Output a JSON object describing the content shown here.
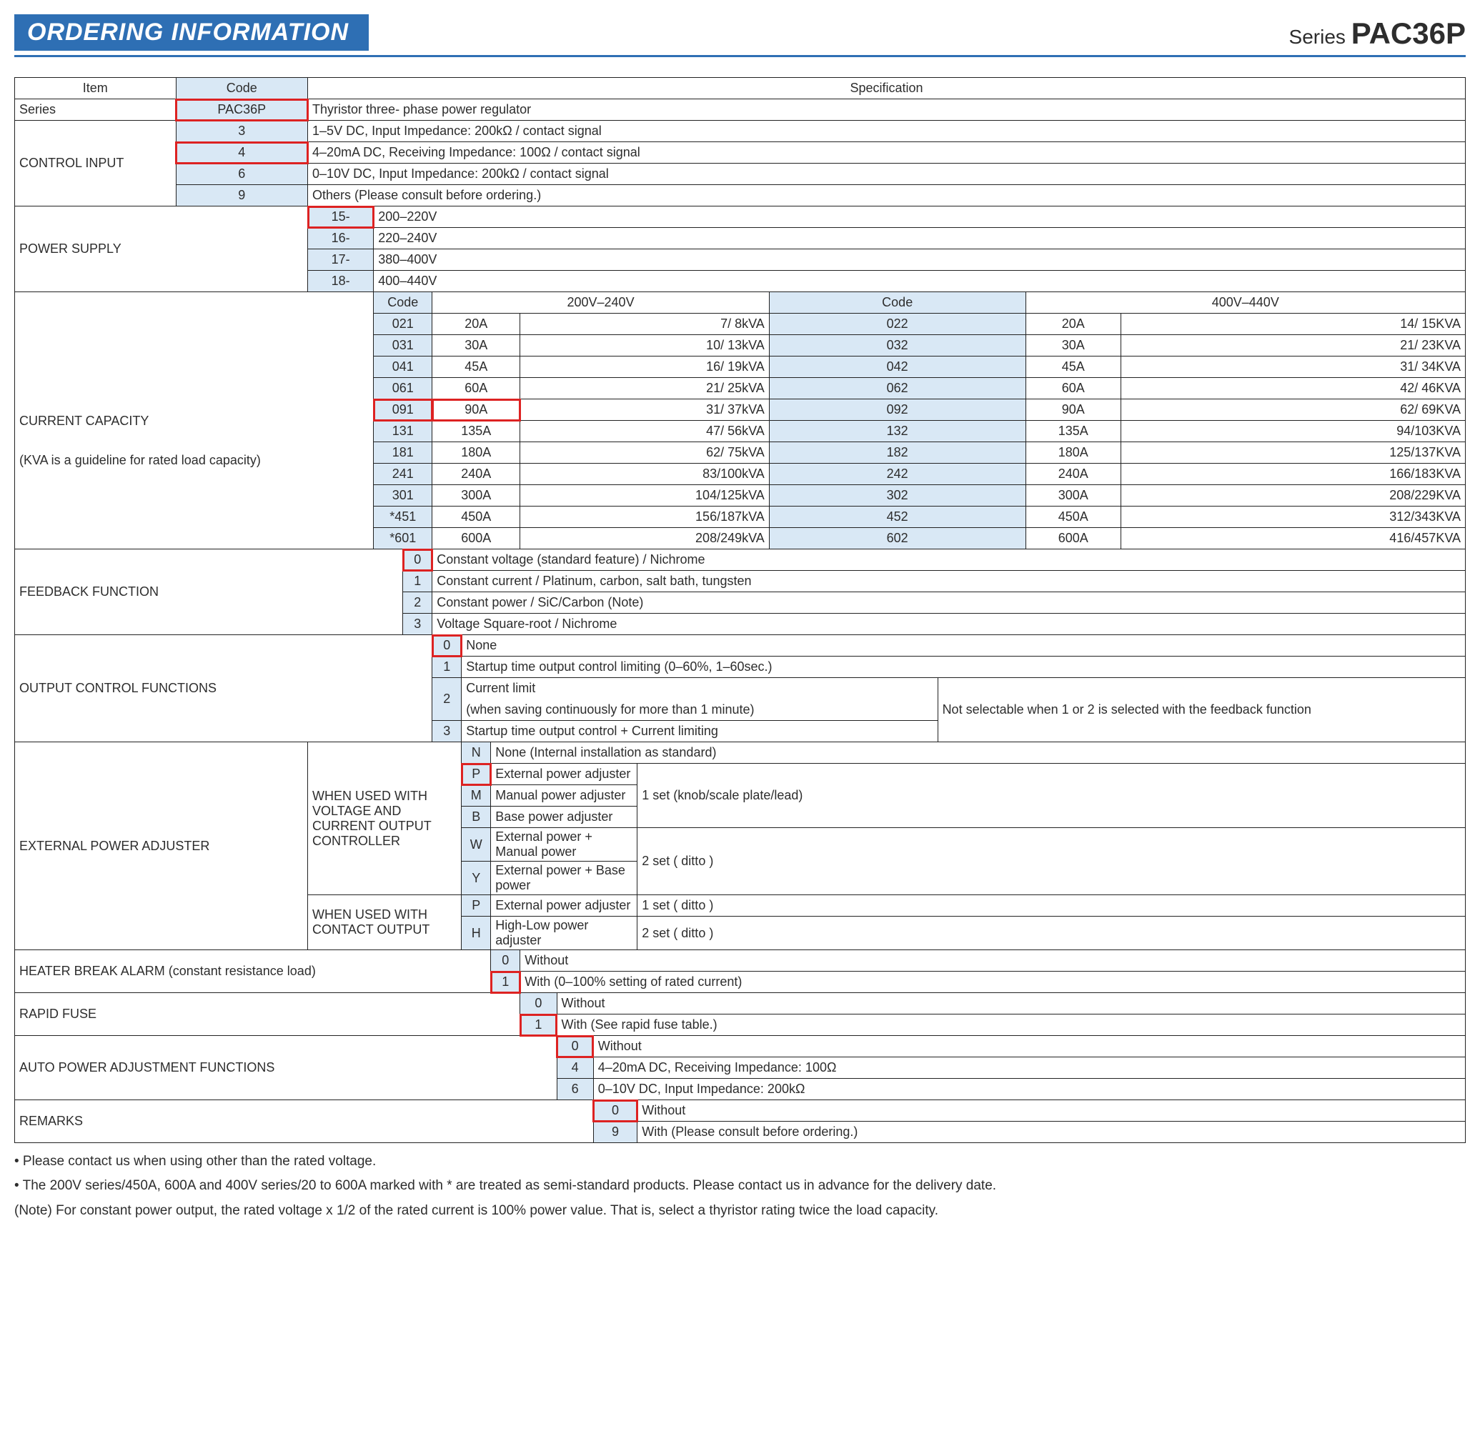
{
  "header": {
    "title": "ORDERING INFORMATION",
    "series_prefix": "Series",
    "series_model": "PAC36P"
  },
  "table_head": {
    "item": "Item",
    "code": "Code",
    "spec": "Specification"
  },
  "series_row": {
    "label": "Series",
    "code": "PAC36P",
    "spec": "Thyristor three- phase power regulator"
  },
  "control_input": {
    "label": "CONTROL INPUT",
    "rows": [
      {
        "code": "3",
        "spec": "1–5V DC, Input Impedance: 200kΩ / contact signal",
        "sel": false
      },
      {
        "code": "4",
        "spec": "4–20mA DC, Receiving Impedance: 100Ω / contact signal",
        "sel": true
      },
      {
        "code": "6",
        "spec": "0–10V DC, Input Impedance: 200kΩ / contact signal",
        "sel": false
      },
      {
        "code": "9",
        "spec": "Others (Please consult before ordering.)",
        "sel": false
      }
    ]
  },
  "power_supply": {
    "label": "POWER SUPPLY",
    "rows": [
      {
        "code": "15-",
        "spec": "200–220V",
        "sel": true
      },
      {
        "code": "16-",
        "spec": "220–240V",
        "sel": false
      },
      {
        "code": "17-",
        "spec": "380–400V",
        "sel": false
      },
      {
        "code": "18-",
        "spec": "400–440V",
        "sel": false
      }
    ]
  },
  "current_capacity": {
    "label": "CURRENT CAPACITY",
    "sublabel": "(KVA is a guideline for rated load capacity)",
    "header": {
      "code": "Code",
      "v200": "200V–240V",
      "code2": "Code",
      "v400": "400V–440V"
    },
    "rows": [
      {
        "c1": "021",
        "a1": "20A",
        "k1": "7/   8kVA",
        "c2": "022",
        "a2": "20A",
        "k2": "14/  15KVA",
        "sel": false
      },
      {
        "c1": "031",
        "a1": "30A",
        "k1": "10/  13kVA",
        "c2": "032",
        "a2": "30A",
        "k2": "21/  23KVA",
        "sel": false
      },
      {
        "c1": "041",
        "a1": "45A",
        "k1": "16/  19kVA",
        "c2": "042",
        "a2": "45A",
        "k2": "31/  34KVA",
        "sel": false
      },
      {
        "c1": "061",
        "a1": "60A",
        "k1": "21/  25kVA",
        "c2": "062",
        "a2": "60A",
        "k2": "42/  46KVA",
        "sel": false
      },
      {
        "c1": "091",
        "a1": "90A",
        "k1": "31/  37kVA",
        "c2": "092",
        "a2": "90A",
        "k2": "62/  69KVA",
        "sel": true
      },
      {
        "c1": "131",
        "a1": "135A",
        "k1": "47/  56kVA",
        "c2": "132",
        "a2": "135A",
        "k2": "94/103KVA",
        "sel": false
      },
      {
        "c1": "181",
        "a1": "180A",
        "k1": "62/  75kVA",
        "c2": "182",
        "a2": "180A",
        "k2": "125/137KVA",
        "sel": false
      },
      {
        "c1": "241",
        "a1": "240A",
        "k1": "83/100kVA",
        "c2": "242",
        "a2": "240A",
        "k2": "166/183KVA",
        "sel": false
      },
      {
        "c1": "301",
        "a1": "300A",
        "k1": "104/125kVA",
        "c2": "302",
        "a2": "300A",
        "k2": "208/229KVA",
        "sel": false
      },
      {
        "c1": "*451",
        "a1": "450A",
        "k1": "156/187kVA",
        "c2": "452",
        "a2": "450A",
        "k2": "312/343KVA",
        "sel": false
      },
      {
        "c1": "*601",
        "a1": "600A",
        "k1": "208/249kVA",
        "c2": "602",
        "a2": "600A",
        "k2": "416/457KVA",
        "sel": false
      }
    ]
  },
  "feedback": {
    "label": "FEEDBACK FUNCTION",
    "rows": [
      {
        "code": "0",
        "spec": "Constant voltage (standard feature) / Nichrome",
        "sel": true
      },
      {
        "code": "1",
        "spec": "Constant current / Platinum, carbon, salt bath, tungsten",
        "sel": false
      },
      {
        "code": "2",
        "spec": "Constant power / SiC/Carbon (Note)",
        "sel": false
      },
      {
        "code": "3",
        "spec": "Voltage Square-root / Nichrome",
        "sel": false
      }
    ]
  },
  "output_control": {
    "label": "OUTPUT CONTROL FUNCTIONS",
    "note": "Not selectable when 1 or 2 is selected with the feedback function",
    "rows": [
      {
        "code": "0",
        "spec": "None",
        "sel": true
      },
      {
        "code": "1",
        "spec": "Startup time output control limiting (0–60%, 1–60sec.)",
        "sel": false
      },
      {
        "code": "2",
        "spec_l1": "Current limit",
        "spec_l2": "(when saving continuously for more than 1 minute)",
        "sel": false
      },
      {
        "code": "3",
        "spec": "Startup time output control + Current limiting",
        "sel": false
      }
    ]
  },
  "external_power": {
    "label": "EXTERNAL POWER ADJUSTER",
    "group1_label_l1": "WHEN USED WITH",
    "group1_label_l2": "VOLTAGE AND",
    "group1_label_l3": "CURRENT OUTPUT",
    "group1_label_l4": "CONTROLLER",
    "group2_label_l1": "WHEN USED WITH",
    "group2_label_l2": "CONTACT  OUTPUT",
    "group1": [
      {
        "code": "N",
        "spec": "None (Internal installation as standard)",
        "note": "",
        "sel": false
      },
      {
        "code": "P",
        "spec": "External power adjuster",
        "note": "",
        "sel": true
      },
      {
        "code": "M",
        "spec": "Manual power adjuster",
        "note": "1 set (knob/scale plate/lead)",
        "sel": false
      },
      {
        "code": "B",
        "spec": "Base power adjuster",
        "note": "",
        "sel": false
      },
      {
        "code": "W",
        "spec": "External power + Manual power",
        "note": "2 set (            ditto            )",
        "sel": false
      },
      {
        "code": "Y",
        "spec": "External power + Base power",
        "note": "",
        "sel": false
      }
    ],
    "group2": [
      {
        "code": "P",
        "spec": "External power adjuster",
        "note": "1 set (            ditto            )",
        "sel": false
      },
      {
        "code": "H",
        "spec": "High-Low power adjuster",
        "note": "2 set (            ditto            )",
        "sel": false
      }
    ]
  },
  "heater_break": {
    "label": "HEATER BREAK ALARM (constant resistance load)",
    "rows": [
      {
        "code": "0",
        "spec": "Without",
        "sel": false
      },
      {
        "code": "1",
        "spec": "With (0–100% setting of rated current)",
        "sel": true
      }
    ]
  },
  "rapid_fuse": {
    "label": "RAPID FUSE",
    "rows": [
      {
        "code": "0",
        "spec": "Without",
        "sel": false
      },
      {
        "code": "1",
        "spec": "With (See rapid fuse table.)",
        "sel": true
      }
    ]
  },
  "auto_power": {
    "label": "AUTO POWER ADJUSTMENT FUNCTIONS",
    "rows": [
      {
        "code": "0",
        "spec": "Without",
        "sel": true
      },
      {
        "code": "4",
        "spec": "4–20mA DC, Receiving Impedance: 100Ω",
        "sel": false
      },
      {
        "code": "6",
        "spec": "0–10V DC, Input Impedance: 200kΩ",
        "sel": false
      }
    ]
  },
  "remarks": {
    "label": "REMARKS",
    "rows": [
      {
        "code": "0",
        "spec": "Without",
        "sel": true
      },
      {
        "code": "9",
        "spec": "With (Please consult before ordering.)",
        "sel": false
      }
    ]
  },
  "notes": [
    "• Please contact us when using other than the rated voltage.",
    "• The 200V series/450A, 600A and 400V series/20 to 600A marked with * are treated as semi-standard products.  Please contact us in advance for the delivery date.",
    "(Note) For constant power output, the rated voltage x 1/2 of the rated current is 100% power value. That is, select a thyristor rating twice the load capacity."
  ]
}
